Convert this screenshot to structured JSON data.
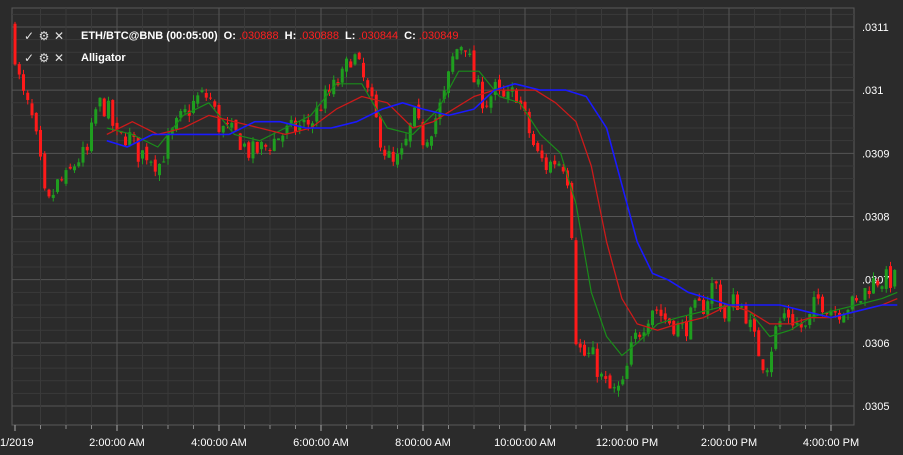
{
  "legend": {
    "main": {
      "symbol": "ETH/BTC@BNB (00:05:00)",
      "o_label": "O:",
      "o_value": ".030888",
      "h_label": "H:",
      "h_value": ".030888",
      "l_label": "L:",
      "l_value": ".030844",
      "c_label": "C:",
      "c_value": ".030849"
    },
    "indicator": {
      "name": "Alligator"
    },
    "icons": [
      "check-icon",
      "gear-icon",
      "close-icon"
    ]
  },
  "colors": {
    "background": "#2b2b2b",
    "grid": "#4a4a4a",
    "up": "#1f9e1f",
    "down": "#ff1a1a",
    "jaw": "#1a1aff",
    "teeth": "#cc1a1a",
    "lips": "#1a8c1a",
    "value_text": "#ff2020"
  },
  "chart_data": {
    "type": "candlestick",
    "xlabel": "",
    "ylabel": "",
    "x_ticks": [
      "1/2019",
      "2:00:00 AM",
      "4:00:00 AM",
      "6:00:00 AM",
      "8:00:00 AM",
      "10:00:00 AM",
      "12:00:00 PM",
      "2:00:00 PM",
      "4:00:00 PM"
    ],
    "y_ticks": [
      ".0305",
      ".0306",
      ".0307",
      ".0308",
      ".0309",
      ".031",
      ".0311"
    ],
    "ylim": [
      0.03047,
      0.03113
    ],
    "x_hours": [
      0,
      17.3
    ],
    "close_path": [
      [
        0,
        0.0311
      ],
      [
        0.2,
        0.031
      ],
      [
        0.4,
        0.03096
      ],
      [
        0.55,
        0.0309
      ],
      [
        0.7,
        0.03081
      ],
      [
        0.9,
        0.03085
      ],
      [
        1.1,
        0.03086
      ],
      [
        1.3,
        0.03089
      ],
      [
        1.5,
        0.0309
      ],
      [
        1.7,
        0.03098
      ],
      [
        1.9,
        0.03097
      ],
      [
        2.1,
        0.03092
      ],
      [
        2.3,
        0.03093
      ],
      [
        2.5,
        0.0309
      ],
      [
        2.7,
        0.0309
      ],
      [
        2.9,
        0.03088
      ],
      [
        3.1,
        0.03092
      ],
      [
        3.3,
        0.03095
      ],
      [
        3.5,
        0.03097
      ],
      [
        3.7,
        0.03099
      ],
      [
        3.9,
        0.03099
      ],
      [
        4.1,
        0.03094
      ],
      [
        4.4,
        0.03093
      ],
      [
        4.7,
        0.0309
      ],
      [
        5.0,
        0.03091
      ],
      [
        5.3,
        0.03093
      ],
      [
        5.6,
        0.03094
      ],
      [
        5.9,
        0.03095
      ],
      [
        6.1,
        0.03098
      ],
      [
        6.3,
        0.031
      ],
      [
        6.5,
        0.03102
      ],
      [
        6.7,
        0.03106
      ],
      [
        6.9,
        0.03102
      ],
      [
        7.1,
        0.03097
      ],
      [
        7.3,
        0.03091
      ],
      [
        7.5,
        0.03088
      ],
      [
        7.7,
        0.0309
      ],
      [
        7.9,
        0.03096
      ],
      [
        8.1,
        0.03092
      ],
      [
        8.3,
        0.03095
      ],
      [
        8.5,
        0.03099
      ],
      [
        8.7,
        0.03106
      ],
      [
        8.9,
        0.03108
      ],
      [
        9.1,
        0.03101
      ],
      [
        9.3,
        0.03098
      ],
      [
        9.5,
        0.031
      ],
      [
        9.7,
        0.03098
      ],
      [
        9.9,
        0.031
      ],
      [
        10.1,
        0.03095
      ],
      [
        10.3,
        0.0309
      ],
      [
        10.5,
        0.03088
      ],
      [
        10.7,
        0.03089
      ],
      [
        10.9,
        0.03088
      ],
      [
        11.0,
        0.03078
      ],
      [
        11.05,
        0.03062
      ],
      [
        11.2,
        0.03058
      ],
      [
        11.4,
        0.03058
      ],
      [
        11.6,
        0.03054
      ],
      [
        11.8,
        0.03052
      ],
      [
        12.0,
        0.03053
      ],
      [
        12.2,
        0.0306
      ],
      [
        12.4,
        0.03063
      ],
      [
        12.6,
        0.03066
      ],
      [
        12.8,
        0.03064
      ],
      [
        13.0,
        0.03063
      ],
      [
        13.2,
        0.03062
      ],
      [
        13.4,
        0.03065
      ],
      [
        13.6,
        0.03066
      ],
      [
        13.8,
        0.0307
      ],
      [
        14.0,
        0.03064
      ],
      [
        14.2,
        0.03067
      ],
      [
        14.4,
        0.03065
      ],
      [
        14.6,
        0.0306
      ],
      [
        14.8,
        0.03056
      ],
      [
        15.0,
        0.03062
      ],
      [
        15.2,
        0.03065
      ],
      [
        15.4,
        0.03063
      ],
      [
        15.6,
        0.03062
      ],
      [
        15.8,
        0.03067
      ],
      [
        16.0,
        0.03066
      ],
      [
        16.2,
        0.03065
      ],
      [
        16.4,
        0.03066
      ],
      [
        16.6,
        0.03066
      ],
      [
        16.8,
        0.03069
      ],
      [
        17.0,
        0.0307
      ],
      [
        17.3,
        0.0307
      ]
    ],
    "jaw": [
      [
        1.8,
        0.03092
      ],
      [
        2.2,
        0.03091
      ],
      [
        2.7,
        0.03093
      ],
      [
        3.2,
        0.03093
      ],
      [
        3.7,
        0.03093
      ],
      [
        4.2,
        0.03093
      ],
      [
        4.7,
        0.03095
      ],
      [
        5.2,
        0.03095
      ],
      [
        5.7,
        0.03094
      ],
      [
        6.2,
        0.03094
      ],
      [
        6.7,
        0.03095
      ],
      [
        7.2,
        0.03097
      ],
      [
        7.6,
        0.03098
      ],
      [
        8.0,
        0.03097
      ],
      [
        8.5,
        0.03096
      ],
      [
        9.0,
        0.03097
      ],
      [
        9.4,
        0.031
      ],
      [
        9.8,
        0.03101
      ],
      [
        10.3,
        0.031
      ],
      [
        10.8,
        0.031
      ],
      [
        11.2,
        0.03099
      ],
      [
        11.6,
        0.03094
      ],
      [
        11.9,
        0.03085
      ],
      [
        12.2,
        0.03076
      ],
      [
        12.5,
        0.03071
      ],
      [
        12.8,
        0.0307
      ],
      [
        13.2,
        0.03068
      ],
      [
        13.6,
        0.03067
      ],
      [
        14.0,
        0.03066
      ],
      [
        14.5,
        0.03066
      ],
      [
        15.0,
        0.03066
      ],
      [
        15.5,
        0.03065
      ],
      [
        16.0,
        0.03064
      ],
      [
        16.5,
        0.03065
      ],
      [
        17.0,
        0.03066
      ],
      [
        17.3,
        0.03066
      ]
    ],
    "teeth": [
      [
        1.8,
        0.03093
      ],
      [
        2.3,
        0.03095
      ],
      [
        2.8,
        0.03093
      ],
      [
        3.3,
        0.03094
      ],
      [
        3.8,
        0.03096
      ],
      [
        4.3,
        0.03095
      ],
      [
        4.8,
        0.03094
      ],
      [
        5.3,
        0.03093
      ],
      [
        5.8,
        0.03094
      ],
      [
        6.3,
        0.03097
      ],
      [
        6.8,
        0.03099
      ],
      [
        7.3,
        0.03098
      ],
      [
        7.8,
        0.03094
      ],
      [
        8.2,
        0.03095
      ],
      [
        8.6,
        0.03097
      ],
      [
        9.0,
        0.03099
      ],
      [
        9.4,
        0.031
      ],
      [
        9.8,
        0.031
      ],
      [
        10.2,
        0.031
      ],
      [
        10.6,
        0.03098
      ],
      [
        11.0,
        0.03095
      ],
      [
        11.3,
        0.03088
      ],
      [
        11.6,
        0.03076
      ],
      [
        11.9,
        0.03067
      ],
      [
        12.2,
        0.03063
      ],
      [
        12.6,
        0.03062
      ],
      [
        13.0,
        0.03063
      ],
      [
        13.5,
        0.03064
      ],
      [
        14.0,
        0.03066
      ],
      [
        14.4,
        0.03065
      ],
      [
        14.8,
        0.03063
      ],
      [
        15.2,
        0.03063
      ],
      [
        15.6,
        0.03064
      ],
      [
        16.0,
        0.03064
      ],
      [
        16.5,
        0.03065
      ],
      [
        17.0,
        0.03066
      ],
      [
        17.3,
        0.03067
      ]
    ],
    "lips": [
      [
        1.8,
        0.03094
      ],
      [
        2.3,
        0.03093
      ],
      [
        2.8,
        0.03091
      ],
      [
        3.3,
        0.03096
      ],
      [
        3.8,
        0.03098
      ],
      [
        4.3,
        0.03093
      ],
      [
        4.8,
        0.03092
      ],
      [
        5.3,
        0.03094
      ],
      [
        5.8,
        0.03096
      ],
      [
        6.3,
        0.03101
      ],
      [
        6.8,
        0.03101
      ],
      [
        7.3,
        0.03094
      ],
      [
        7.8,
        0.03093
      ],
      [
        8.3,
        0.03097
      ],
      [
        8.7,
        0.03103
      ],
      [
        9.1,
        0.03103
      ],
      [
        9.5,
        0.03099
      ],
      [
        9.9,
        0.03098
      ],
      [
        10.3,
        0.03093
      ],
      [
        10.7,
        0.0309
      ],
      [
        11.0,
        0.03082
      ],
      [
        11.3,
        0.03068
      ],
      [
        11.6,
        0.03061
      ],
      [
        11.9,
        0.03058
      ],
      [
        12.2,
        0.0306
      ],
      [
        12.6,
        0.03063
      ],
      [
        13.0,
        0.03064
      ],
      [
        13.5,
        0.03065
      ],
      [
        14.0,
        0.03066
      ],
      [
        14.4,
        0.03065
      ],
      [
        14.8,
        0.03061
      ],
      [
        15.2,
        0.03062
      ],
      [
        15.6,
        0.03064
      ],
      [
        16.0,
        0.03065
      ],
      [
        16.5,
        0.03066
      ],
      [
        17.0,
        0.03067
      ],
      [
        17.3,
        0.03068
      ]
    ]
  }
}
